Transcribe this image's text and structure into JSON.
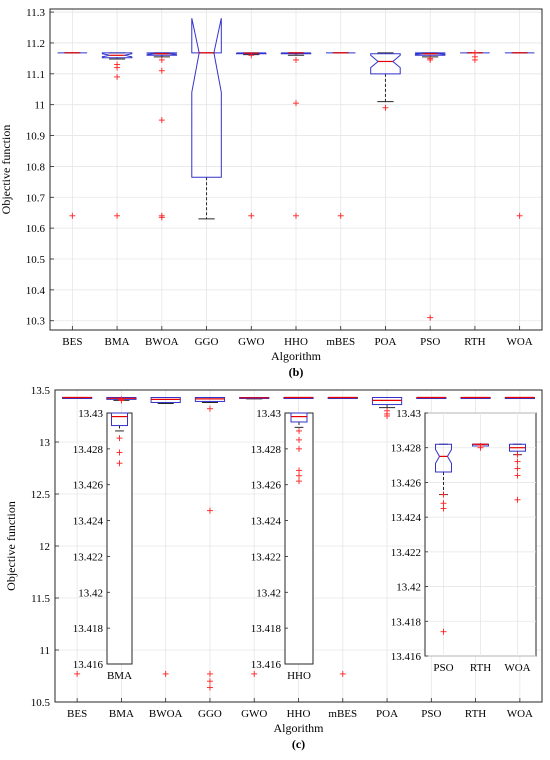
{
  "charts": [
    {
      "caption": "(b)",
      "chart_data": {
        "type": "boxplot",
        "xlabel": "Algorithm",
        "ylabel": "Objective function",
        "ylim": [
          10.27,
          11.31
        ],
        "yticks": [
          10.3,
          10.4,
          10.5,
          10.6,
          10.7,
          10.8,
          10.9,
          11,
          11.1,
          11.2,
          11.3
        ],
        "categories": [
          "BES",
          "BMA",
          "BWOA",
          "GGO",
          "GWO",
          "HHO",
          "mBES",
          "POA",
          "PSO",
          "RTH",
          "WOA"
        ],
        "grid": true,
        "boxes": [
          {
            "name": "BES",
            "q1": 11.168,
            "median": 11.168,
            "q3": 11.168,
            "whisker_low": 11.168,
            "whisker_high": 11.168,
            "notch_low": 11.168,
            "notch_high": 11.168,
            "outliers": [
              10.64
            ]
          },
          {
            "name": "BMA",
            "q1": 11.152,
            "median": 11.16,
            "q3": 11.168,
            "whisker_low": 11.148,
            "whisker_high": 11.168,
            "notch_low": 11.155,
            "notch_high": 11.165,
            "outliers": [
              11.13,
              11.12,
              11.09,
              10.64
            ]
          },
          {
            "name": "BWOA",
            "q1": 11.16,
            "median": 11.165,
            "q3": 11.168,
            "whisker_low": 11.155,
            "whisker_high": 11.168,
            "notch_low": 11.162,
            "notch_high": 11.167,
            "outliers": [
              11.145,
              11.11,
              10.95,
              10.64,
              10.635
            ]
          },
          {
            "name": "GGO",
            "q1": 10.765,
            "median": 11.168,
            "q3": 11.168,
            "whisker_low": 10.63,
            "whisker_high": 11.168,
            "notch_low": 11.04,
            "notch_high": 11.28,
            "outliers": []
          },
          {
            "name": "GWO",
            "q1": 11.165,
            "median": 11.167,
            "q3": 11.168,
            "whisker_low": 11.162,
            "whisker_high": 11.168,
            "notch_low": 11.166,
            "notch_high": 11.168,
            "outliers": [
              11.16,
              10.64
            ]
          },
          {
            "name": "HHO",
            "q1": 11.165,
            "median": 11.168,
            "q3": 11.168,
            "whisker_low": 11.16,
            "whisker_high": 11.168,
            "notch_low": 11.167,
            "notch_high": 11.168,
            "outliers": [
              11.145,
              11.005,
              10.64
            ]
          },
          {
            "name": "mBES",
            "q1": 11.168,
            "median": 11.168,
            "q3": 11.168,
            "whisker_low": 11.168,
            "whisker_high": 11.168,
            "notch_low": 11.168,
            "notch_high": 11.168,
            "outliers": [
              10.64
            ]
          },
          {
            "name": "POA",
            "q1": 11.1,
            "median": 11.14,
            "q3": 11.165,
            "whisker_low": 11.01,
            "whisker_high": 11.168,
            "notch_low": 11.12,
            "notch_high": 11.16,
            "outliers": [
              10.99
            ]
          },
          {
            "name": "PSO",
            "q1": 11.16,
            "median": 11.165,
            "q3": 11.168,
            "whisker_low": 11.155,
            "whisker_high": 11.168,
            "notch_low": 11.163,
            "notch_high": 11.167,
            "outliers": [
              11.15,
              11.145,
              10.31
            ]
          },
          {
            "name": "RTH",
            "q1": 11.168,
            "median": 11.168,
            "q3": 11.168,
            "whisker_low": 11.168,
            "whisker_high": 11.168,
            "notch_low": 11.168,
            "notch_high": 11.168,
            "outliers": [
              11.168,
              11.155,
              11.145
            ]
          },
          {
            "name": "WOA",
            "q1": 11.168,
            "median": 11.168,
            "q3": 11.168,
            "whisker_low": 11.168,
            "whisker_high": 11.168,
            "notch_low": 11.168,
            "notch_high": 11.168,
            "outliers": [
              10.64
            ]
          }
        ]
      }
    },
    {
      "caption": "(c)",
      "chart_data": {
        "type": "boxplot",
        "xlabel": "Algorithm",
        "ylabel": "Objective function",
        "ylim": [
          10.5,
          13.5
        ],
        "yticks": [
          10.5,
          11,
          11.5,
          12,
          12.5,
          13,
          13.5
        ],
        "categories": [
          "BES",
          "BMA",
          "BWOA",
          "GGO",
          "GWO",
          "HHO",
          "mBES",
          "POA",
          "PSO",
          "RTH",
          "WOA"
        ],
        "grid": true,
        "boxes": [
          {
            "name": "BES",
            "q1": 13.428,
            "median": 13.428,
            "q3": 13.428,
            "whisker_low": 13.428,
            "whisker_high": 13.428,
            "outliers": [
              10.77
            ]
          },
          {
            "name": "BMA",
            "q1": 13.41,
            "median": 13.42,
            "q3": 13.428,
            "whisker_low": 13.4,
            "whisker_high": 13.428,
            "outliers": [
              13.41,
              13.4
            ]
          },
          {
            "name": "BWOA",
            "q1": 13.38,
            "median": 13.41,
            "q3": 13.428,
            "whisker_low": 13.37,
            "whisker_high": 13.428,
            "outliers": [
              10.77
            ]
          },
          {
            "name": "GGO",
            "q1": 13.39,
            "median": 13.415,
            "q3": 13.428,
            "whisker_low": 13.38,
            "whisker_high": 13.428,
            "outliers": [
              13.32,
              12.34,
              10.77,
              10.7,
              10.64
            ]
          },
          {
            "name": "GWO",
            "q1": 13.42,
            "median": 13.425,
            "q3": 13.428,
            "whisker_low": 13.415,
            "whisker_high": 13.428,
            "outliers": [
              10.77
            ]
          },
          {
            "name": "HHO",
            "q1": 13.428,
            "median": 13.428,
            "q3": 13.428,
            "whisker_low": 13.428,
            "whisker_high": 13.428,
            "outliers": []
          },
          {
            "name": "mBES",
            "q1": 13.428,
            "median": 13.428,
            "q3": 13.428,
            "whisker_low": 13.428,
            "whisker_high": 13.428,
            "outliers": [
              10.77
            ]
          },
          {
            "name": "POA",
            "q1": 13.36,
            "median": 13.4,
            "q3": 13.428,
            "whisker_low": 13.33,
            "whisker_high": 13.428,
            "outliers": [
              13.3,
              13.27,
              13.25
            ]
          },
          {
            "name": "PSO",
            "q1": 13.428,
            "median": 13.428,
            "q3": 13.428,
            "whisker_low": 13.428,
            "whisker_high": 13.428,
            "outliers": []
          },
          {
            "name": "RTH",
            "q1": 13.428,
            "median": 13.428,
            "q3": 13.428,
            "whisker_low": 13.428,
            "whisker_high": 13.428,
            "outliers": []
          },
          {
            "name": "WOA",
            "q1": 13.428,
            "median": 13.428,
            "q3": 13.428,
            "whisker_low": 13.428,
            "whisker_high": 13.428,
            "outliers": []
          }
        ],
        "insets": [
          {
            "ylim": [
              13.416,
              13.43
            ],
            "yticks": [
              13.416,
              13.418,
              13.42,
              13.422,
              13.424,
              13.426,
              13.428,
              13.43
            ],
            "categories": [
              "BMA"
            ],
            "boxes": [
              {
                "name": "BMA",
                "q1": 13.4293,
                "median": 13.4298,
                "q3": 13.43,
                "whisker_low": 13.429,
                "whisker_high": 13.43,
                "outliers": [
                  13.4286,
                  13.4278,
                  13.4272
                ]
              }
            ]
          },
          {
            "ylim": [
              13.416,
              13.43
            ],
            "yticks": [
              13.416,
              13.418,
              13.42,
              13.422,
              13.424,
              13.426,
              13.428,
              13.43
            ],
            "categories": [
              "HHO"
            ],
            "boxes": [
              {
                "name": "HHO",
                "q1": 13.4295,
                "median": 13.4298,
                "q3": 13.43,
                "whisker_low": 13.4292,
                "whisker_high": 13.43,
                "outliers": [
                  13.429,
                  13.4285,
                  13.428,
                  13.4268,
                  13.4265,
                  13.4262
                ]
              }
            ]
          },
          {
            "ylim": [
              13.416,
              13.43
            ],
            "yticks": [
              13.416,
              13.418,
              13.42,
              13.422,
              13.424,
              13.426,
              13.428,
              13.43
            ],
            "categories": [
              "PSO",
              "RTH",
              "WOA"
            ],
            "boxes": [
              {
                "name": "PSO",
                "q1": 13.4266,
                "median": 13.4275,
                "q3": 13.4282,
                "whisker_low": 13.4253,
                "whisker_high": 13.4282,
                "notch_low": 13.4271,
                "notch_high": 13.4279,
                "outliers": [
                  13.4253,
                  13.4248,
                  13.4245,
                  13.4174
                ]
              },
              {
                "name": "RTH",
                "q1": 13.4281,
                "median": 13.4282,
                "q3": 13.4282,
                "whisker_low": 13.4281,
                "whisker_high": 13.4282,
                "outliers": [
                  13.4281,
                  13.428
                ]
              },
              {
                "name": "WOA",
                "q1": 13.4278,
                "median": 13.428,
                "q3": 13.4282,
                "whisker_low": 13.4276,
                "whisker_high": 13.4282,
                "outliers": [
                  13.4276,
                  13.4272,
                  13.4268,
                  13.4264,
                  13.425
                ]
              }
            ]
          }
        ]
      }
    }
  ],
  "colors": {
    "box": "#3333cc",
    "median": "#e60000",
    "whisker": "#262626",
    "outlier": "#ff2020",
    "grid": "#e6e6e6"
  }
}
